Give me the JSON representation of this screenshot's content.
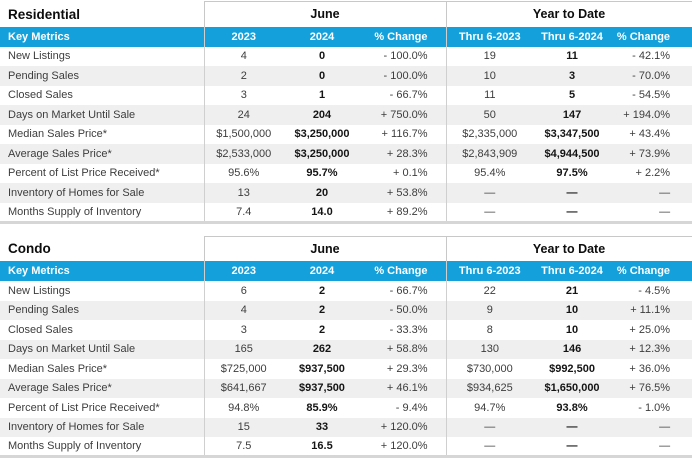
{
  "colors": {
    "header_blue": "#14a0db",
    "row_stripe": "#efefef",
    "border_gray": "#c8c8c8",
    "bottom_border_gray": "#d6d6d6",
    "text_dark": "#141414",
    "text_body": "#3d3d3d"
  },
  "tables": [
    {
      "title": "Residential",
      "group_headers": {
        "month": "June",
        "ytd": "Year to Date"
      },
      "columns": [
        "Key Metrics",
        "2023",
        "2024",
        "% Change",
        "Thru 6-2023",
        "Thru 6-2024",
        "% Change"
      ],
      "rows": [
        [
          "New Listings",
          "4",
          "0",
          "- 100.0%",
          "19",
          "11",
          "- 42.1%"
        ],
        [
          "Pending Sales",
          "2",
          "0",
          "- 100.0%",
          "10",
          "3",
          "- 70.0%"
        ],
        [
          "Closed Sales",
          "3",
          "1",
          "- 66.7%",
          "11",
          "5",
          "- 54.5%"
        ],
        [
          "Days on Market Until Sale",
          "24",
          "204",
          "+ 750.0%",
          "50",
          "147",
          "+ 194.0%"
        ],
        [
          "Median Sales Price*",
          "$1,500,000",
          "$3,250,000",
          "+ 116.7%",
          "$2,335,000",
          "$3,347,500",
          "+ 43.4%"
        ],
        [
          "Average Sales Price*",
          "$2,533,000",
          "$3,250,000",
          "+ 28.3%",
          "$2,843,909",
          "$4,944,500",
          "+ 73.9%"
        ],
        [
          "Percent of List Price Received*",
          "95.6%",
          "95.7%",
          "+ 0.1%",
          "95.4%",
          "97.5%",
          "+ 2.2%"
        ],
        [
          "Inventory of Homes for Sale",
          "13",
          "20",
          "+ 53.8%",
          "—",
          "—",
          "—"
        ],
        [
          "Months Supply of Inventory",
          "7.4",
          "14.0",
          "+ 89.2%",
          "—",
          "—",
          "—"
        ]
      ]
    },
    {
      "title": "Condo",
      "group_headers": {
        "month": "June",
        "ytd": "Year to Date"
      },
      "columns": [
        "Key Metrics",
        "2023",
        "2024",
        "% Change",
        "Thru 6-2023",
        "Thru 6-2024",
        "% Change"
      ],
      "rows": [
        [
          "New Listings",
          "6",
          "2",
          "- 66.7%",
          "22",
          "21",
          "- 4.5%"
        ],
        [
          "Pending Sales",
          "4",
          "2",
          "- 50.0%",
          "9",
          "10",
          "+ 11.1%"
        ],
        [
          "Closed Sales",
          "3",
          "2",
          "- 33.3%",
          "8",
          "10",
          "+ 25.0%"
        ],
        [
          "Days on Market Until Sale",
          "165",
          "262",
          "+ 58.8%",
          "130",
          "146",
          "+ 12.3%"
        ],
        [
          "Median Sales Price*",
          "$725,000",
          "$937,500",
          "+ 29.3%",
          "$730,000",
          "$992,500",
          "+ 36.0%"
        ],
        [
          "Average Sales Price*",
          "$641,667",
          "$937,500",
          "+ 46.1%",
          "$934,625",
          "$1,650,000",
          "+ 76.5%"
        ],
        [
          "Percent of List Price Received*",
          "94.8%",
          "85.9%",
          "- 9.4%",
          "94.7%",
          "93.8%",
          "- 1.0%"
        ],
        [
          "Inventory of Homes for Sale",
          "15",
          "33",
          "+ 120.0%",
          "—",
          "—",
          "—"
        ],
        [
          "Months Supply of Inventory",
          "7.5",
          "16.5",
          "+ 120.0%",
          "—",
          "—",
          "—"
        ]
      ]
    }
  ]
}
